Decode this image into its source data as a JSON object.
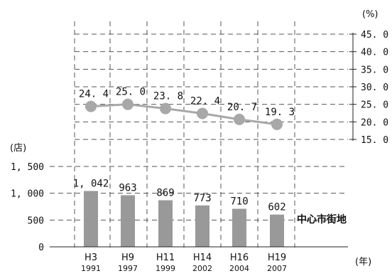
{
  "chart_data": {
    "type": "bar+line",
    "categories": [
      "H3",
      "H9",
      "H11",
      "H14",
      "H16",
      "H19"
    ],
    "years": [
      "1991",
      "1997",
      "1999",
      "2002",
      "2004",
      "2007"
    ],
    "bar_series": {
      "name": "中心市街地",
      "values": [
        1042,
        963,
        869,
        773,
        710,
        602
      ],
      "labels": [
        "1, 042",
        "963",
        "869",
        "773",
        "710",
        "602"
      ],
      "color": "#999999"
    },
    "line_series": {
      "values": [
        24.4,
        25.0,
        23.8,
        22.4,
        20.7,
        19.3
      ],
      "labels": [
        "24. 4",
        "25. 0",
        "23. 8",
        "22. 4",
        "20. 7",
        "19. 3"
      ],
      "color": "#a8a8a8"
    },
    "left_axis": {
      "unit": "(店)",
      "ylim": [
        0,
        1500
      ],
      "ticks": [
        0,
        500,
        1000,
        1500
      ],
      "tick_labels": [
        "0",
        "500",
        "1, 000",
        "1, 500"
      ]
    },
    "right_axis": {
      "unit": "(%)",
      "ylim": [
        15,
        45
      ],
      "ticks": [
        15,
        20,
        25,
        30,
        35,
        40,
        45
      ],
      "tick_labels": [
        "15. 0",
        "20. 0",
        "25. 0",
        "30. 0",
        "35. 0",
        "40. 0",
        "45. 0"
      ]
    },
    "x_unit": "(年)",
    "grid": true
  }
}
